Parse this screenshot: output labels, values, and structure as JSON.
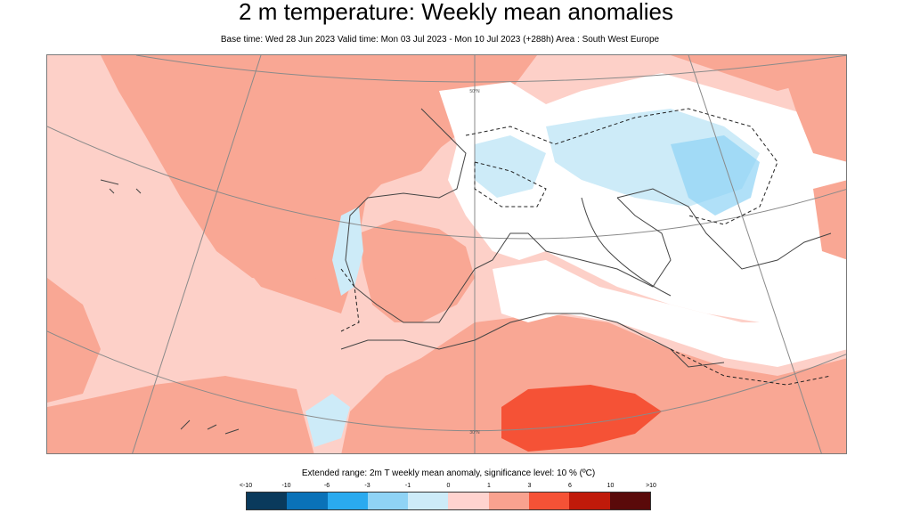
{
  "header": {
    "title": "2 m temperature: Weekly mean anomalies",
    "subtitle": "Base time: Wed 28 Jun 2023 Valid time: Mon 03 Jul 2023 - Mon 10 Jul 2023 (+288h) Area : South West Europe"
  },
  "map": {
    "graticule_labels": [
      "50°N",
      "30°N"
    ]
  },
  "legend": {
    "title": "Extended range: 2m T weekly mean anomaly, significance level: 10 % (ºC)",
    "ticks": [
      "<-10",
      "-10",
      "-6",
      "-3",
      "-1",
      "0",
      "1",
      "3",
      "6",
      "10",
      ">10"
    ],
    "colors": [
      "#0a3a5c",
      "#0a72b8",
      "#2aaaef",
      "#8fd3f5",
      "#cdebf8",
      "#ffd3cf",
      "#f9a28f",
      "#f55236",
      "#c01a0a",
      "#5a0a0a"
    ]
  }
}
